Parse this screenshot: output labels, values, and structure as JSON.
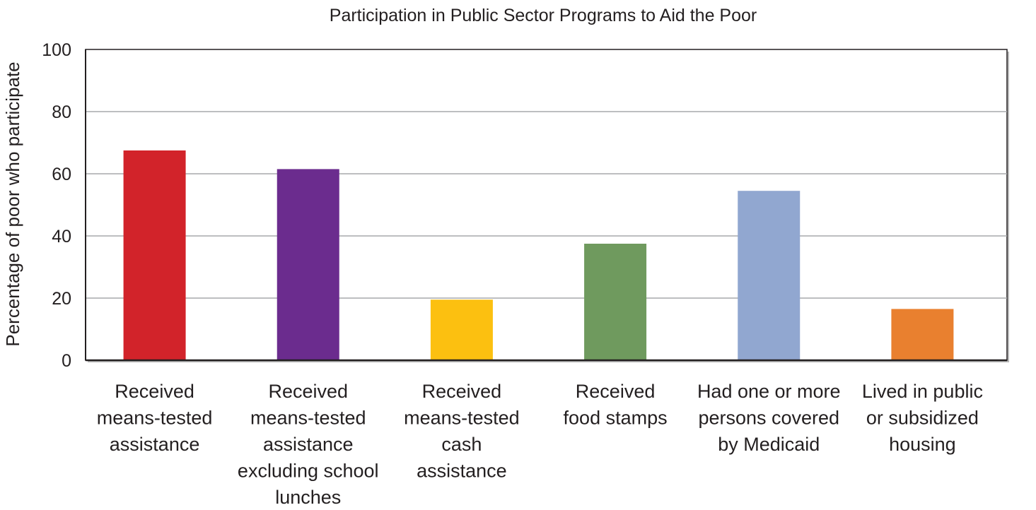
{
  "chart_data": {
    "type": "bar",
    "title": "Participation in Public Sector Programs to Aid the Poor",
    "xlabel": "",
    "ylabel": "Percentage of poor who participate",
    "ylim": [
      0,
      100
    ],
    "yticks": [
      "0",
      "20",
      "40",
      "60",
      "80",
      "100"
    ],
    "grid": true,
    "categories": [
      "Received means-tested assistance",
      "Received means-tested assistance excluding school lunches",
      "Received means-tested cash assistance",
      "Received food stamps",
      "Had one or more persons covered by Medicaid",
      "Lived in public or subsidized housing"
    ],
    "category_lines": [
      [
        "Received",
        "means-tested",
        "assistance"
      ],
      [
        "Received",
        "means-tested",
        "assistance",
        "excluding school",
        "lunches"
      ],
      [
        "Received",
        "means-tested",
        "cash",
        "assistance"
      ],
      [
        "Received",
        "food stamps"
      ],
      [
        "Had one or more",
        "persons covered",
        "by Medicaid"
      ],
      [
        "Lived in public",
        "or subsidized",
        "housing"
      ]
    ],
    "values": [
      67.5,
      61.5,
      19.5,
      37.5,
      54.5,
      16.5
    ],
    "colors": [
      "#d2232a",
      "#6b2c8e",
      "#fcc010",
      "#6f9a5e",
      "#91a7d0",
      "#e9802f"
    ]
  }
}
